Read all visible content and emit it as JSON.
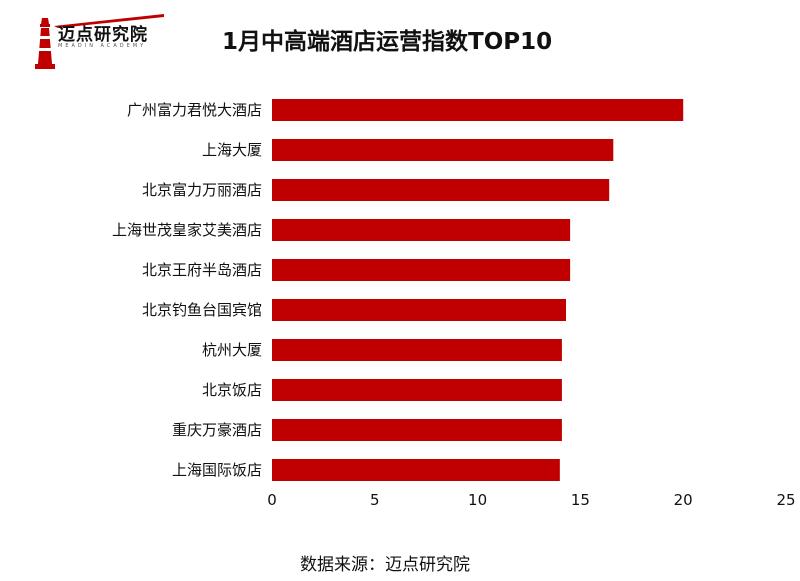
{
  "logo": {
    "name": "迈点研究院",
    "tagline": "MEADIN ACADEMY"
  },
  "source": "数据来源：迈点研究院",
  "chart_data": {
    "type": "bar",
    "orientation": "horizontal",
    "title": "1月中高端酒店运营指数TOP10",
    "categories": [
      "广州富力君悦大酒店",
      "上海大厦",
      "北京富力万丽酒店",
      "上海世茂皇家艾美酒店",
      "北京王府半岛酒店",
      "北京钓鱼台国宾馆",
      "杭州大厦",
      "北京饭店",
      "重庆万豪酒店",
      "上海国际饭店"
    ],
    "values": [
      20.0,
      16.6,
      16.4,
      14.5,
      14.5,
      14.3,
      14.1,
      14.1,
      14.1,
      14.0
    ],
    "xlim": [
      0,
      25
    ],
    "xticks": [
      0,
      5,
      10,
      15,
      20,
      25
    ],
    "bar_color": "#c00000",
    "grid": false
  }
}
